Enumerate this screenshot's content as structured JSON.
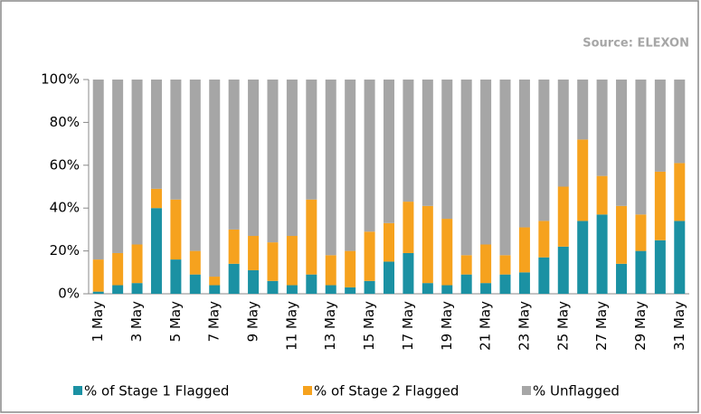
{
  "chart_data": {
    "type": "stacked_bar",
    "source": "Source: ELEXON",
    "categories": [
      "1 May",
      null,
      "3 May",
      null,
      "5 May",
      null,
      "7 May",
      null,
      "9 May",
      null,
      "11 May",
      null,
      "13 May",
      null,
      "15 May",
      null,
      "17 May",
      null,
      "19 May",
      null,
      "21 May",
      null,
      "23 May",
      null,
      "25 May",
      null,
      "27 May",
      null,
      "29 May",
      null,
      "31 May"
    ],
    "series": [
      {
        "name": "% of Stage 1 Flagged",
        "color": "#1b91a3",
        "values": [
          1,
          4,
          5,
          40,
          16,
          9,
          4,
          14,
          11,
          6,
          4,
          9,
          4,
          3,
          6,
          15,
          19,
          5,
          4,
          9,
          5,
          9,
          10,
          17,
          22,
          34,
          37,
          14,
          20,
          25,
          34
        ]
      },
      {
        "name": "% of Stage 2 Flagged",
        "color": "#f6a21e",
        "values": [
          15,
          15,
          18,
          9,
          28,
          11,
          4,
          16,
          16,
          18,
          23,
          35,
          14,
          17,
          23,
          18,
          24,
          36,
          31,
          9,
          18,
          9,
          21,
          17,
          28,
          38,
          18,
          27,
          17,
          32,
          27
        ]
      },
      {
        "name": "% Unflagged",
        "color": "#a6a6a6",
        "values": [
          84,
          81,
          77,
          51,
          56,
          80,
          92,
          70,
          73,
          76,
          73,
          56,
          82,
          80,
          71,
          67,
          57,
          59,
          65,
          82,
          77,
          82,
          69,
          66,
          50,
          28,
          45,
          59,
          63,
          43,
          39
        ]
      }
    ],
    "ylim": [
      0,
      100
    ],
    "yticks": [
      {
        "value": 0,
        "label": "0%"
      },
      {
        "value": 20,
        "label": "20%"
      },
      {
        "value": 40,
        "label": "40%"
      },
      {
        "value": 60,
        "label": "60%"
      },
      {
        "value": 80,
        "label": "80%"
      },
      {
        "value": 100,
        "label": "100%"
      }
    ]
  }
}
